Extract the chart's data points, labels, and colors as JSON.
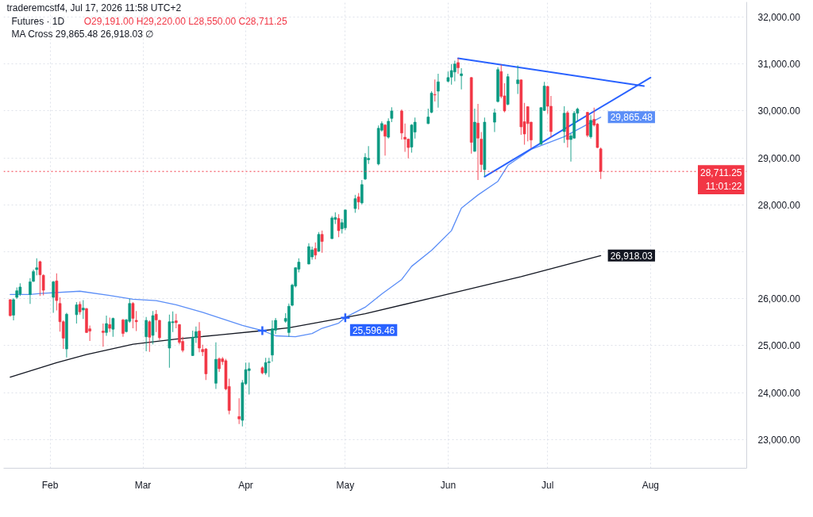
{
  "chart_data": {
    "type": "candlestick",
    "title": "Futures · 1D",
    "subtitle": "O29,191.00 H29,220.00 L28,550.00 C28,711.25",
    "annotations": [
      "traderemcstf4, Jul 17, 2026 11:58 UTC+2",
      "MA Cross 29,865.48 26,918.03 ∅"
    ],
    "x": [
      "2026-01-20",
      "2026-01-21",
      "2026-01-22",
      "2026-01-23",
      "2026-01-26",
      "2026-01-27",
      "2026-01-28",
      "2026-01-29",
      "2026-01-30",
      "2026-02-02",
      "2026-02-03",
      "2026-02-04",
      "2026-02-05",
      "2026-02-06",
      "2026-02-09",
      "2026-02-10",
      "2026-02-11",
      "2026-02-12",
      "2026-02-13",
      "2026-02-17",
      "2026-02-18",
      "2026-02-19",
      "2026-02-20",
      "2026-02-23",
      "2026-02-24",
      "2026-02-25",
      "2026-02-26",
      "2026-02-27",
      "2026-03-02",
      "2026-03-03",
      "2026-03-04",
      "2026-03-05",
      "2026-03-06",
      "2026-03-09",
      "2026-03-10",
      "2026-03-11",
      "2026-03-12",
      "2026-03-13",
      "2026-03-16",
      "2026-03-17",
      "2026-03-18",
      "2026-03-19",
      "2026-03-20",
      "2026-03-23",
      "2026-03-24",
      "2026-03-25",
      "2026-03-26",
      "2026-03-27",
      "2026-03-30",
      "2026-03-31",
      "2026-04-01",
      "2026-04-02",
      "2026-04-06",
      "2026-04-07",
      "2026-04-08",
      "2026-04-09",
      "2026-04-10",
      "2026-04-13",
      "2026-04-14",
      "2026-04-15",
      "2026-04-16",
      "2026-04-17",
      "2026-04-20",
      "2026-04-21",
      "2026-04-22",
      "2026-04-23",
      "2026-04-24",
      "2026-04-27",
      "2026-04-28",
      "2026-04-29",
      "2026-04-30",
      "2026-05-01",
      "2026-05-04",
      "2026-05-05",
      "2026-05-06",
      "2026-05-07",
      "2026-05-08",
      "2026-05-11",
      "2026-05-12",
      "2026-05-13",
      "2026-05-14",
      "2026-05-15",
      "2026-05-18",
      "2026-05-19",
      "2026-05-20",
      "2026-05-21",
      "2026-05-22",
      "2026-05-26",
      "2026-05-27",
      "2026-05-28",
      "2026-05-29",
      "2026-06-01",
      "2026-06-02",
      "2026-06-03",
      "2026-06-04",
      "2026-06-05",
      "2026-06-08",
      "2026-06-09",
      "2026-06-10",
      "2026-06-11",
      "2026-06-12",
      "2026-06-15",
      "2026-06-16",
      "2026-06-17",
      "2026-06-18",
      "2026-06-19",
      "2026-06-22",
      "2026-06-23",
      "2026-06-24",
      "2026-06-25",
      "2026-06-26",
      "2026-06-29",
      "2026-06-30",
      "2026-07-01",
      "2026-07-02",
      "2026-07-06",
      "2026-07-07",
      "2026-07-08",
      "2026-07-09",
      "2026-07-10",
      "2026-07-13",
      "2026-07-14",
      "2026-07-15",
      "2026-07-16",
      "2026-07-17"
    ],
    "ohlc": [
      [
        25980,
        25990,
        25620,
        25640
      ],
      [
        25650,
        26010,
        25540,
        25980
      ],
      [
        26030,
        26240,
        26000,
        26170
      ],
      [
        26100,
        26330,
        26060,
        26250
      ],
      [
        26090,
        26440,
        25890,
        26360
      ],
      [
        26370,
        26620,
        26360,
        26580
      ],
      [
        26620,
        26860,
        26500,
        26660
      ],
      [
        26790,
        26810,
        26060,
        26510
      ],
      [
        26500,
        26520,
        26070,
        26180
      ],
      [
        26030,
        26380,
        25700,
        26360
      ],
      [
        26380,
        26540,
        25750,
        25960
      ],
      [
        25900,
        26030,
        25300,
        25510
      ],
      [
        25510,
        25540,
        24930,
        25160
      ],
      [
        24930,
        25700,
        24750,
        25670
      ],
      [
        25660,
        25930,
        25470,
        25870
      ],
      [
        25880,
        25940,
        25660,
        25720
      ],
      [
        25760,
        25970,
        25570,
        25800
      ],
      [
        25790,
        25800,
        25270,
        25280
      ],
      [
        25360,
        25430,
        25100,
        25310
      ],
      [
        25310,
        25470,
        24980,
        25280
      ],
      [
        25280,
        25640,
        25210,
        25470
      ],
      [
        25450,
        25600,
        25290,
        25370
      ],
      [
        25350,
        25600,
        25190,
        25580
      ],
      [
        25550,
        25570,
        25190,
        25260
      ],
      [
        25300,
        25570,
        25280,
        25550
      ],
      [
        25520,
        26000,
        25490,
        25900
      ],
      [
        25900,
        25930,
        25370,
        25580
      ],
      [
        25540,
        25740,
        25310,
        25510
      ],
      [
        25190,
        25610,
        24880,
        25540
      ],
      [
        25510,
        25540,
        24870,
        25180
      ],
      [
        25220,
        25740,
        25030,
        25640
      ],
      [
        25670,
        25760,
        25290,
        25550
      ],
      [
        25540,
        25550,
        25120,
        25170
      ],
      [
        24950,
        25660,
        24530,
        25510
      ],
      [
        25490,
        25730,
        25290,
        25510
      ],
      [
        25530,
        25680,
        25370,
        25490
      ],
      [
        25450,
        25460,
        25030,
        25070
      ],
      [
        25090,
        25190,
        24860,
        24900
      ],
      [
        24790,
        25320,
        24780,
        25180
      ],
      [
        25170,
        25410,
        25060,
        25300
      ],
      [
        25310,
        25500,
        24860,
        24950
      ],
      [
        24920,
        25020,
        24780,
        24870
      ],
      [
        24930,
        24950,
        24270,
        24400
      ],
      [
        24200,
        25070,
        24080,
        24710
      ],
      [
        24720,
        24750,
        24440,
        24510
      ],
      [
        24720,
        24760,
        24590,
        24660
      ],
      [
        24680,
        24720,
        24050,
        24080
      ],
      [
        24130,
        24300,
        23540,
        23620
      ],
      [
        23490,
        23880,
        23330,
        23440
      ],
      [
        23410,
        24270,
        23280,
        24210
      ],
      [
        24190,
        24640,
        24160,
        24490
      ],
      [
        24470,
        24640,
        23960,
        24510
      ],
      [
        24530,
        24560,
        24390,
        24420
      ],
      [
        24420,
        24740,
        24380,
        24640
      ],
      [
        24640,
        24740,
        24330,
        24660
      ],
      [
        24800,
        25540,
        24660,
        25360
      ],
      [
        25330,
        25590,
        25250,
        25540
      ],
      [
        25520,
        25690,
        25490,
        25580
      ],
      [
        25280,
        25900,
        25190,
        25840
      ],
      [
        25860,
        26320,
        25840,
        26290
      ],
      [
        26270,
        26670,
        26240,
        26660
      ],
      [
        26630,
        26860,
        26560,
        26780
      ],
      [
        26740,
        27180,
        26730,
        27110
      ],
      [
        26890,
        27110,
        26830,
        27040
      ],
      [
        27070,
        27200,
        26840,
        26930
      ],
      [
        27010,
        27420,
        27000,
        27370
      ],
      [
        27370,
        27450,
        26980,
        27220
      ],
      [
        27280,
        27760,
        27270,
        27720
      ],
      [
        27690,
        27840,
        27590,
        27730
      ],
      [
        27710,
        27800,
        27310,
        27450
      ],
      [
        27490,
        27700,
        27390,
        27620
      ],
      [
        27510,
        27900,
        27460,
        27890
      ],
      [
        27920,
        28210,
        27830,
        28130
      ],
      [
        28170,
        28250,
        27900,
        28060
      ],
      [
        28040,
        28530,
        28010,
        28430
      ],
      [
        28550,
        29100,
        28530,
        29010
      ],
      [
        28960,
        29250,
        28870,
        28990
      ],
      [
        28870,
        29690,
        28840,
        29630
      ],
      [
        29590,
        29780,
        29560,
        29730
      ],
      [
        29700,
        29720,
        29050,
        29460
      ],
      [
        29440,
        29840,
        29410,
        29780
      ],
      [
        29840,
        30080,
        29760,
        30000
      ],
      [
        30000,
        30030,
        29390,
        29530
      ],
      [
        29440,
        29730,
        29130,
        29400
      ],
      [
        29400,
        29410,
        28990,
        29220
      ],
      [
        29230,
        29720,
        29110,
        29700
      ],
      [
        29550,
        29860,
        29410,
        29760
      ],
      [
        29730,
        30050,
        29720,
        29870
      ],
      [
        29970,
        30420,
        29950,
        30380
      ],
      [
        30350,
        30670,
        30200,
        30340
      ],
      [
        30420,
        30790,
        30070,
        30620
      ],
      [
        30630,
        30840,
        30610,
        30710
      ],
      [
        30720,
        31000,
        30560,
        30860
      ],
      [
        30830,
        31070,
        30630,
        31000
      ],
      [
        31030,
        31120,
        30790,
        30920
      ],
      [
        30750,
        30910,
        30460,
        30790
      ],
      [
        30710,
        30720,
        29090,
        29330
      ],
      [
        29140,
        30050,
        29130,
        29760
      ],
      [
        29740,
        30150,
        28530,
        29420
      ],
      [
        29400,
        29550,
        28700,
        28860
      ],
      [
        28750,
        29860,
        28600,
        29760
      ],
      [
        29760,
        30050,
        29550,
        29960
      ],
      [
        30200,
        30930,
        30180,
        30880
      ],
      [
        30840,
        30980,
        30270,
        30310
      ],
      [
        30320,
        30590,
        29970,
        30000
      ],
      [
        30140,
        30790,
        30120,
        30730
      ],
      [
        30580,
        30970,
        30360,
        30660
      ],
      [
        30660,
        30670,
        29490,
        29660
      ],
      [
        29770,
        30170,
        29280,
        29510
      ],
      [
        30090,
        30100,
        29350,
        29730
      ],
      [
        29760,
        29770,
        29210,
        29380
      ],
      [
        29290,
        30080,
        29280,
        30070
      ],
      [
        30010,
        30620,
        30000,
        30530
      ],
      [
        30520,
        30540,
        29940,
        30100
      ],
      [
        30100,
        30320,
        29440,
        29560
      ],
      [
        29560,
        30100,
        29320,
        29950
      ],
      [
        29960,
        30000,
        29220,
        29390
      ],
      [
        29390,
        29520,
        28920,
        29470
      ],
      [
        29420,
        30000,
        29410,
        29950
      ],
      [
        29950,
        30070,
        29770,
        30040
      ],
      [
        29970,
        29980,
        29440,
        29480
      ],
      [
        29450,
        29910,
        29410,
        29800
      ],
      [
        29820,
        30070,
        29670,
        29700
      ],
      [
        29720,
        29740,
        29210,
        29220
      ],
      [
        29191,
        29220,
        28550,
        28711.25
      ]
    ],
    "colors": [
      "#f23645",
      "#089981",
      "#089981",
      "#089981",
      "#089981",
      "#089981",
      "#089981",
      "#f23645",
      "#f23645",
      "#089981",
      "#f23645",
      "#f23645",
      "#f23645",
      "#089981",
      "#089981",
      "#f23645",
      "#089981",
      "#f23645",
      "#f23645",
      "#f23645",
      "#089981",
      "#f23645",
      "#089981",
      "#f23645",
      "#089981",
      "#089981",
      "#f23645",
      "#f23645",
      "#089981",
      "#f23645",
      "#089981",
      "#f23645",
      "#f23645",
      "#089981",
      "#089981",
      "#f23645",
      "#f23645",
      "#f23645",
      "#089981",
      "#089981",
      "#f23645",
      "#f23645",
      "#f23645",
      "#089981",
      "#f23645",
      "#f23645",
      "#f23645",
      "#f23645",
      "#f23645",
      "#089981",
      "#089981",
      "#089981",
      "#f23645",
      "#089981",
      "#089981",
      "#089981",
      "#089981",
      "#089981",
      "#089981",
      "#089981",
      "#089981",
      "#089981",
      "#089981",
      "#089981",
      "#f23645",
      "#089981",
      "#f23645",
      "#089981",
      "#089981",
      "#f23645",
      "#089981",
      "#089981",
      "#089981",
      "#f23645",
      "#089981",
      "#089981",
      "#089981",
      "#089981",
      "#089981",
      "#f23645",
      "#089981",
      "#089981",
      "#f23645",
      "#f23645",
      "#f23645",
      "#089981",
      "#089981",
      "#089981",
      "#089981",
      "#f23645",
      "#089981",
      "#089981",
      "#089981",
      "#089981",
      "#f23645",
      "#089981",
      "#f23645",
      "#089981",
      "#f23645",
      "#f23645",
      "#089981",
      "#089981",
      "#089981",
      "#f23645",
      "#f23645",
      "#089981",
      "#089981",
      "#f23645",
      "#f23645",
      "#f23645",
      "#f23645",
      "#089981",
      "#089981",
      "#f23645",
      "#f23645",
      "#089981",
      "#f23645",
      "#089981",
      "#089981",
      "#089981",
      "#f23645",
      "#089981",
      "#f23645",
      "#f23645",
      "#f23645"
    ],
    "series": [
      {
        "type": "line",
        "color": "#5b8ef7",
        "x": [
          "2026-01-20",
          "2026-01-26",
          "2026-01-29",
          "2026-02-10",
          "2026-02-19",
          "2026-02-26",
          "2026-03-05",
          "2026-03-11",
          "2026-03-19",
          "2026-03-25",
          "2026-03-31",
          "2026-04-06",
          "2026-04-10",
          "2026-04-16",
          "2026-04-21",
          "2026-04-24",
          "2026-04-29",
          "2026-05-01",
          "2026-05-07",
          "2026-05-12",
          "2026-05-18",
          "2026-05-21",
          "2026-05-27",
          "2026-06-02",
          "2026-06-05",
          "2026-06-10",
          "2026-06-16",
          "2026-06-19",
          "2026-06-26",
          "2026-07-06",
          "2026-07-17"
        ],
        "values": [
          26090,
          26090,
          26110,
          26160,
          26070,
          25990,
          25960,
          25870,
          25710,
          25570,
          25430,
          25320,
          25210,
          25190,
          25260,
          25370,
          25480,
          25600,
          25820,
          26100,
          26410,
          26690,
          27030,
          27450,
          27930,
          28210,
          28500,
          28840,
          29180,
          29450,
          29865.48
        ],
        "value_labels": [
          null,
          null,
          null,
          null,
          null,
          null,
          null,
          null,
          null,
          null,
          null,
          null,
          null,
          null,
          null,
          null,
          null,
          null,
          null,
          null,
          null,
          null,
          null,
          null,
          null,
          null,
          null,
          null,
          null,
          null,
          "29,865.48"
        ]
      },
      {
        "type": "line",
        "color": "#131722",
        "x": [
          "2026-01-20",
          "2026-02-03",
          "2026-02-12",
          "2026-02-26",
          "2026-03-11",
          "2026-03-24",
          "2026-04-06",
          "2026-04-14",
          "2026-05-01",
          "2026-05-07",
          "2026-05-29",
          "2026-06-23",
          "2026-07-17"
        ],
        "values": [
          24330,
          24640,
          24810,
          25030,
          25140,
          25230,
          25320,
          25380,
          25600,
          25680,
          26050,
          26470,
          26918.03
        ],
        "value_labels": [
          null,
          null,
          null,
          null,
          null,
          null,
          null,
          null,
          null,
          null,
          null,
          null,
          "26,918.03"
        ]
      },
      {
        "type": "scatter",
        "marker": "cross",
        "color": "#2962ff",
        "x": [
          "2026-04-06",
          "2026-05-01"
        ],
        "values": [
          25320,
          25596.46
        ],
        "value_labels": [
          null,
          "25,596.46"
        ]
      },
      {
        "type": "line",
        "color": "#2962ff",
        "x": [
          "2026-06-04",
          "2026-07-30"
        ],
        "values": [
          31120,
          30530
        ]
      },
      {
        "type": "line",
        "color": "#2962ff",
        "x": [
          "2026-06-12",
          "2026-08-01"
        ],
        "values": [
          28600,
          30710
        ]
      }
    ],
    "ref_lines": [
      {
        "axis": "y",
        "value": 28711.25,
        "label": "28,711.25\n11:01:22",
        "color": "#f23645",
        "line_style": "dotted"
      }
    ],
    "xlim": [
      "2026-01-18",
      "2026-08-30"
    ],
    "xticks": [
      {
        "value": "2026-02-01",
        "label": "Feb"
      },
      {
        "value": "2026-03-01",
        "label": "Mar"
      },
      {
        "value": "2026-04-01",
        "label": "Apr"
      },
      {
        "value": "2026-05-01",
        "label": "May"
      },
      {
        "value": "2026-06-01",
        "label": "Jun"
      },
      {
        "value": "2026-07-01",
        "label": "Jul"
      },
      {
        "value": "2026-08-01",
        "label": "Aug"
      }
    ],
    "ylim": [
      22390,
      32320
    ],
    "yticks": [
      {
        "value": 23000,
        "label": "23,000.00"
      },
      {
        "value": 24000,
        "label": "24,000.00"
      },
      {
        "value": 25000,
        "label": "25,000.00"
      },
      {
        "value": 26000,
        "label": "26,000.00"
      },
      {
        "value": 27000,
        "label": null
      },
      {
        "value": 28000,
        "label": "28,000.00"
      },
      {
        "value": 29000,
        "label": "29,000.00"
      },
      {
        "value": 30000,
        "label": "30,000.00"
      },
      {
        "value": 31000,
        "label": "31,000.00"
      },
      {
        "value": 32000,
        "label": "32,000.00"
      }
    ],
    "grid": true
  }
}
